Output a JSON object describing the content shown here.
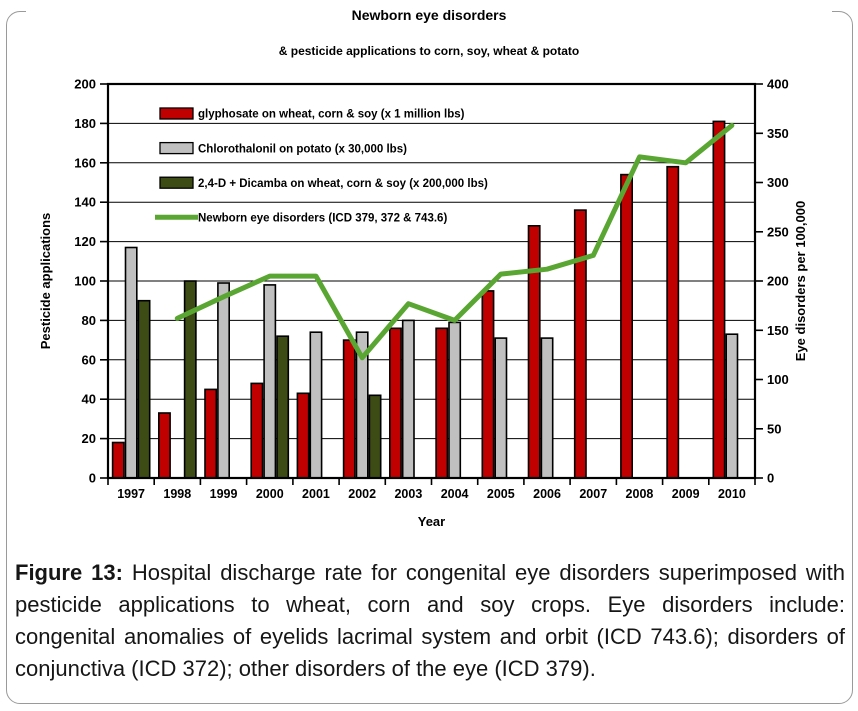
{
  "chart": {
    "title": "Newborn eye disorders",
    "subtitle": "& pesticide applications to corn, soy, wheat & potato"
  },
  "chart_data": {
    "type": "bar+line",
    "categories": [
      "1997",
      "1998",
      "1999",
      "2000",
      "2001",
      "2002",
      "2003",
      "2004",
      "2005",
      "2006",
      "2007",
      "2008",
      "2009",
      "2010"
    ],
    "series": [
      {
        "key": "glyphosate",
        "name": "glyphosate on wheat, corn & soy (x 1 million lbs)",
        "type": "bar",
        "axis": "left",
        "color": "#c00000",
        "values": [
          18,
          33,
          45,
          48,
          43,
          70,
          76,
          76,
          95,
          128,
          136,
          154,
          158,
          181
        ]
      },
      {
        "key": "chlorothalonil",
        "name": "Chlorothalonil on potato (x 30,000 lbs)",
        "type": "bar",
        "axis": "left",
        "color": "#c0c0c0",
        "values": [
          117,
          null,
          99,
          98,
          74,
          74,
          80,
          79,
          71,
          71,
          null,
          null,
          null,
          73
        ]
      },
      {
        "key": "24d-dicamba",
        "name": "2,4-D + Dicamba on wheat, corn & soy (x 200,000 lbs)",
        "type": "bar",
        "axis": "left",
        "color": "#3c4c14",
        "values": [
          90,
          100,
          null,
          72,
          null,
          42,
          null,
          null,
          null,
          null,
          null,
          null,
          null,
          null
        ]
      },
      {
        "key": "eye-disorders",
        "name": "Newborn eye disorders (ICD 379, 372 & 743.6)",
        "type": "line",
        "axis": "right",
        "color": "#5aa632",
        "values": [
          null,
          162,
          184,
          205,
          205,
          122,
          177,
          160,
          207,
          212,
          226,
          326,
          320,
          358
        ]
      }
    ],
    "left_axis": {
      "label": "Pesticide applications",
      "min": 0,
      "max": 200,
      "step": 20
    },
    "right_axis": {
      "label": "Eye disorders per 100,000",
      "min": 0,
      "max": 400,
      "step": 50
    },
    "x_axis": {
      "label": "Year"
    },
    "grid": true,
    "legend_position": "top-left-inside"
  },
  "caption": {
    "label": "Figure 13:",
    "text": " Hospital discharge rate for congenital eye disorders superimposed with pesticide applications to wheat, corn and soy crops.  Eye disorders include: congenital anomalies of eyelids lacrimal system and orbit (ICD 743.6); disorders of conjunctiva (ICD 372); other disorders of the eye (ICD 379)."
  }
}
